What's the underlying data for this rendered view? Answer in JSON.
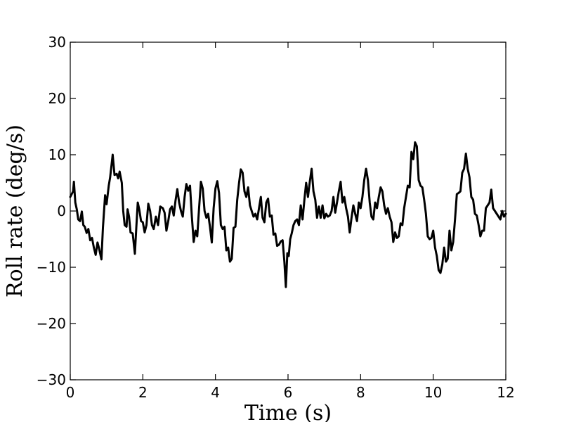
{
  "chart_data": {
    "type": "line",
    "title": "",
    "xlabel": "Time (s)",
    "ylabel": "Roll rate (deg/s)",
    "xlim": [
      0,
      12
    ],
    "ylim": [
      -30,
      30
    ],
    "x_ticks": [
      "0",
      "2",
      "4",
      "6",
      "8",
      "10",
      "12"
    ],
    "y_ticks": [
      "30",
      "20",
      "10",
      "0",
      "−10",
      "−20",
      "−30"
    ],
    "grid": false,
    "line_color": "#000000",
    "series": [
      {
        "values": [
          [
            0.0,
            2.5
          ],
          [
            0.08,
            3.5
          ],
          [
            0.1,
            5.2
          ],
          [
            0.14,
            1.5
          ],
          [
            0.18,
            0.3
          ],
          [
            0.22,
            -1.5
          ],
          [
            0.27,
            -1.8
          ],
          [
            0.32,
            -0.1
          ],
          [
            0.36,
            -2.5
          ],
          [
            0.4,
            -2.8
          ],
          [
            0.45,
            -3.9
          ],
          [
            0.5,
            -3.2
          ],
          [
            0.55,
            -5.2
          ],
          [
            0.6,
            -4.8
          ],
          [
            0.65,
            -6.5
          ],
          [
            0.7,
            -7.8
          ],
          [
            0.75,
            -5.6
          ],
          [
            0.8,
            -6.8
          ],
          [
            0.86,
            -8.6
          ],
          [
            0.9,
            -3.0
          ],
          [
            0.96,
            2.8
          ],
          [
            1.0,
            1.2
          ],
          [
            1.06,
            4.5
          ],
          [
            1.1,
            6.0
          ],
          [
            1.17,
            10.0
          ],
          [
            1.22,
            6.4
          ],
          [
            1.28,
            6.6
          ],
          [
            1.32,
            5.8
          ],
          [
            1.36,
            7.0
          ],
          [
            1.42,
            5.0
          ],
          [
            1.46,
            0.0
          ],
          [
            1.5,
            -2.5
          ],
          [
            1.55,
            -2.8
          ],
          [
            1.58,
            0.3
          ],
          [
            1.62,
            -1.0
          ],
          [
            1.66,
            -3.8
          ],
          [
            1.72,
            -4.0
          ],
          [
            1.78,
            -7.6
          ],
          [
            1.82,
            -3.0
          ],
          [
            1.86,
            1.5
          ],
          [
            1.9,
            0.3
          ],
          [
            1.95,
            -1.8
          ],
          [
            2.0,
            -2.0
          ],
          [
            2.05,
            -3.8
          ],
          [
            2.1,
            -2.5
          ],
          [
            2.15,
            1.3
          ],
          [
            2.2,
            0.0
          ],
          [
            2.25,
            -2.5
          ],
          [
            2.3,
            -3.2
          ],
          [
            2.36,
            -1.0
          ],
          [
            2.42,
            -2.5
          ],
          [
            2.48,
            0.8
          ],
          [
            2.55,
            0.5
          ],
          [
            2.6,
            -0.3
          ],
          [
            2.65,
            -3.5
          ],
          [
            2.7,
            -1.8
          ],
          [
            2.75,
            0.3
          ],
          [
            2.8,
            0.8
          ],
          [
            2.85,
            -0.8
          ],
          [
            2.9,
            1.8
          ],
          [
            2.95,
            3.9
          ],
          [
            3.0,
            1.5
          ],
          [
            3.05,
            0.0
          ],
          [
            3.1,
            -1.0
          ],
          [
            3.15,
            2.5
          ],
          [
            3.2,
            4.8
          ],
          [
            3.25,
            3.6
          ],
          [
            3.3,
            4.5
          ],
          [
            3.35,
            -1.0
          ],
          [
            3.4,
            -5.5
          ],
          [
            3.45,
            -3.5
          ],
          [
            3.5,
            -4.5
          ],
          [
            3.55,
            0.5
          ],
          [
            3.6,
            5.2
          ],
          [
            3.65,
            4.0
          ],
          [
            3.7,
            0.0
          ],
          [
            3.75,
            -1.2
          ],
          [
            3.8,
            -0.5
          ],
          [
            3.85,
            -2.8
          ],
          [
            3.9,
            -5.6
          ],
          [
            3.95,
            0.5
          ],
          [
            4.0,
            4.0
          ],
          [
            4.05,
            5.3
          ],
          [
            4.1,
            3.2
          ],
          [
            4.15,
            -2.5
          ],
          [
            4.2,
            -3.2
          ],
          [
            4.25,
            -2.8
          ],
          [
            4.3,
            -7.0
          ],
          [
            4.35,
            -6.5
          ],
          [
            4.4,
            -9.0
          ],
          [
            4.45,
            -8.5
          ],
          [
            4.5,
            -3.0
          ],
          [
            4.55,
            -2.8
          ],
          [
            4.6,
            2.0
          ],
          [
            4.65,
            5.0
          ],
          [
            4.7,
            7.4
          ],
          [
            4.75,
            6.8
          ],
          [
            4.8,
            3.5
          ],
          [
            4.85,
            2.5
          ],
          [
            4.9,
            4.2
          ],
          [
            4.95,
            1.0
          ],
          [
            5.0,
            0.0
          ],
          [
            5.05,
            -1.0
          ],
          [
            5.1,
            -0.5
          ],
          [
            5.15,
            -1.5
          ],
          [
            5.2,
            0.5
          ],
          [
            5.25,
            2.5
          ],
          [
            5.3,
            -1.2
          ],
          [
            5.35,
            -2.0
          ],
          [
            5.4,
            1.5
          ],
          [
            5.45,
            2.2
          ],
          [
            5.5,
            -1.0
          ],
          [
            5.55,
            -0.8
          ],
          [
            5.6,
            -4.2
          ],
          [
            5.65,
            -4.0
          ],
          [
            5.7,
            -6.2
          ],
          [
            5.75,
            -6.0
          ],
          [
            5.8,
            -5.4
          ],
          [
            5.85,
            -5.2
          ],
          [
            5.9,
            -9.0
          ],
          [
            5.94,
            -13.5
          ],
          [
            5.98,
            -7.5
          ],
          [
            6.02,
            -8.0
          ],
          [
            6.06,
            -5.0
          ],
          [
            6.1,
            -4.0
          ],
          [
            6.15,
            -2.5
          ],
          [
            6.2,
            -1.8
          ],
          [
            6.25,
            -1.5
          ],
          [
            6.3,
            -2.5
          ],
          [
            6.35,
            1.0
          ],
          [
            6.4,
            -1.5
          ],
          [
            6.45,
            2.0
          ],
          [
            6.5,
            5.0
          ],
          [
            6.55,
            2.5
          ],
          [
            6.6,
            5.2
          ],
          [
            6.65,
            7.5
          ],
          [
            6.7,
            3.5
          ],
          [
            6.75,
            2.0
          ],
          [
            6.8,
            -1.2
          ],
          [
            6.85,
            0.8
          ],
          [
            6.9,
            -1.2
          ],
          [
            6.95,
            1.0
          ],
          [
            7.0,
            -1.3
          ],
          [
            7.05,
            -0.5
          ],
          [
            7.1,
            -1.0
          ],
          [
            7.15,
            -0.8
          ],
          [
            7.2,
            0.0
          ],
          [
            7.25,
            2.5
          ],
          [
            7.3,
            -0.3
          ],
          [
            7.35,
            1.5
          ],
          [
            7.4,
            3.5
          ],
          [
            7.45,
            5.2
          ],
          [
            7.5,
            1.5
          ],
          [
            7.55,
            2.5
          ],
          [
            7.6,
            0.5
          ],
          [
            7.65,
            -1.0
          ],
          [
            7.7,
            -3.8
          ],
          [
            7.75,
            -1.2
          ],
          [
            7.8,
            1.0
          ],
          [
            7.85,
            -0.5
          ],
          [
            7.9,
            -1.8
          ],
          [
            7.95,
            1.5
          ],
          [
            8.0,
            0.5
          ],
          [
            8.05,
            2.5
          ],
          [
            8.1,
            5.5
          ],
          [
            8.15,
            7.5
          ],
          [
            8.2,
            5.5
          ],
          [
            8.25,
            1.5
          ],
          [
            8.3,
            -1.0
          ],
          [
            8.35,
            -1.5
          ],
          [
            8.4,
            1.5
          ],
          [
            8.45,
            0.5
          ],
          [
            8.5,
            2.5
          ],
          [
            8.55,
            4.2
          ],
          [
            8.6,
            3.5
          ],
          [
            8.65,
            1.0
          ],
          [
            8.7,
            -0.5
          ],
          [
            8.75,
            0.5
          ],
          [
            8.8,
            -1.0
          ],
          [
            8.85,
            -2.0
          ],
          [
            8.9,
            -5.5
          ],
          [
            8.95,
            -3.8
          ],
          [
            9.0,
            -4.8
          ],
          [
            9.05,
            -4.5
          ],
          [
            9.1,
            -2.2
          ],
          [
            9.15,
            -2.5
          ],
          [
            9.2,
            0.5
          ],
          [
            9.25,
            2.5
          ],
          [
            9.3,
            4.5
          ],
          [
            9.35,
            4.2
          ],
          [
            9.4,
            10.5
          ],
          [
            9.45,
            9.2
          ],
          [
            9.5,
            12.2
          ],
          [
            9.55,
            11.5
          ],
          [
            9.6,
            5.5
          ],
          [
            9.65,
            4.5
          ],
          [
            9.7,
            4.2
          ],
          [
            9.75,
            2.0
          ],
          [
            9.8,
            -0.5
          ],
          [
            9.85,
            -4.5
          ],
          [
            9.9,
            -5.0
          ],
          [
            9.95,
            -4.8
          ],
          [
            10.0,
            -3.5
          ],
          [
            10.05,
            -6.5
          ],
          [
            10.1,
            -8.0
          ],
          [
            10.15,
            -10.5
          ],
          [
            10.2,
            -11.0
          ],
          [
            10.25,
            -9.5
          ],
          [
            10.3,
            -6.5
          ],
          [
            10.35,
            -9.0
          ],
          [
            10.4,
            -8.5
          ],
          [
            10.45,
            -3.5
          ],
          [
            10.5,
            -7.0
          ],
          [
            10.55,
            -5.5
          ],
          [
            10.6,
            -1.5
          ],
          [
            10.65,
            3.0
          ],
          [
            10.7,
            3.2
          ],
          [
            10.75,
            3.5
          ],
          [
            10.8,
            6.8
          ],
          [
            10.85,
            7.5
          ],
          [
            10.9,
            10.2
          ],
          [
            10.95,
            7.5
          ],
          [
            11.0,
            6.0
          ],
          [
            11.05,
            2.5
          ],
          [
            11.1,
            2.0
          ],
          [
            11.15,
            -0.5
          ],
          [
            11.2,
            -0.8
          ],
          [
            11.25,
            -2.5
          ],
          [
            11.3,
            -4.5
          ],
          [
            11.35,
            -3.5
          ],
          [
            11.4,
            -3.5
          ],
          [
            11.45,
            0.5
          ],
          [
            11.5,
            1.0
          ],
          [
            11.55,
            1.5
          ],
          [
            11.6,
            3.8
          ],
          [
            11.65,
            0.5
          ],
          [
            11.7,
            0.0
          ],
          [
            11.75,
            -0.5
          ],
          [
            11.8,
            -1.0
          ],
          [
            11.85,
            -1.5
          ],
          [
            11.9,
            0.0
          ],
          [
            11.95,
            -1.0
          ],
          [
            12.0,
            -0.5
          ]
        ]
      }
    ]
  }
}
